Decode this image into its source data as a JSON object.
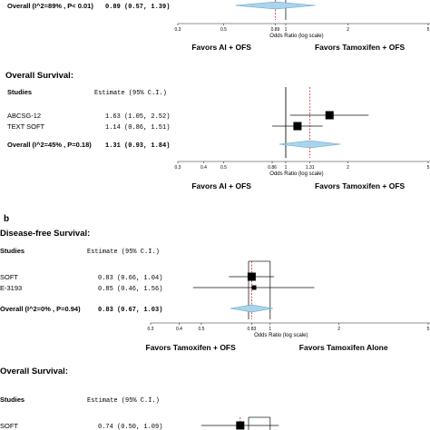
{
  "chart_data": [
    {
      "type": "forest",
      "panel": "",
      "section_title": "",
      "columns": {
        "studies": "",
        "estimate": ""
      },
      "rows": [],
      "overall": {
        "label": "Overall (I^2=89% , P< 0.01)",
        "text": "0.89 (0.57, 1.39)",
        "est": 0.89,
        "lo": 0.57,
        "hi": 1.39
      },
      "xlabel": "Odds Ratio (log scale)",
      "ticks": [
        "0.3",
        "0.5",
        "0.89",
        "1",
        "2",
        "5"
      ],
      "tick_values": [
        0.3,
        0.5,
        0.89,
        1,
        2,
        5
      ],
      "xlim": [
        0.3,
        5
      ],
      "refline": 0.89,
      "favor_left": "Favors AI + OFS",
      "favor_right": "Favors Tamoxifen + OFS"
    },
    {
      "type": "forest",
      "panel": "",
      "section_title": "Overall Survival:",
      "columns": {
        "studies": "Studies",
        "estimate": "Estimate (95% C.I.)"
      },
      "rows": [
        {
          "label": "ABCSG-12",
          "text": "1.63 (1.05, 2.52)",
          "est": 1.63,
          "lo": 1.05,
          "hi": 2.52
        },
        {
          "label": "TEXT SOFT",
          "text": "1.14 (0.86, 1.51)",
          "est": 1.14,
          "lo": 0.86,
          "hi": 1.51
        }
      ],
      "overall": {
        "label": "Overall (I^2=45% , P=0.18)",
        "text": "1.31 (0.93, 1.84)",
        "est": 1.31,
        "lo": 0.93,
        "hi": 1.84
      },
      "xlabel": "Odds Ratio (log scale)",
      "ticks": [
        "0.3",
        "0.4",
        "0.5",
        "0.86",
        "1",
        "1.31",
        "2",
        "5"
      ],
      "tick_values": [
        0.3,
        0.4,
        0.5,
        0.86,
        1,
        1.31,
        2,
        5
      ],
      "xlim": [
        0.3,
        5
      ],
      "refline": 1.31,
      "favor_left": "Favors AI + OFS",
      "favor_right": "Favors Tamoxifen + OFS"
    },
    {
      "type": "forest",
      "panel": "b",
      "section_title": "Disease-free Survival:",
      "columns": {
        "studies": "Studies",
        "estimate": "Estimate (95% C.I.)"
      },
      "rows": [
        {
          "label": "SOFT",
          "text": "0.83 (0.66, 1.04)",
          "est": 0.83,
          "lo": 0.66,
          "hi": 1.04
        },
        {
          "label": "E-3193",
          "text": "0.85 (0.46, 1.56)",
          "est": 0.85,
          "lo": 0.46,
          "hi": 1.56
        }
      ],
      "overall": {
        "label": "Overall (I^2=0% , P=0.94)",
        "text": "0.83 (0.67, 1.03)",
        "est": 0.83,
        "lo": 0.67,
        "hi": 1.03
      },
      "xlabel": "Odds Ratio (log scale)",
      "ticks": [
        "0.3",
        "0.4",
        "0.5",
        "0.83",
        "1",
        "2",
        "5"
      ],
      "tick_values": [
        0.3,
        0.4,
        0.5,
        0.83,
        1,
        2,
        5
      ],
      "xlim": [
        0.3,
        5
      ],
      "refline": 0.83,
      "favor_left": "Favors Tamoxifen + OFS",
      "favor_right": "Favors Tamoxifen Alone"
    },
    {
      "type": "forest",
      "panel": "",
      "section_title": "Overall Survival:",
      "columns": {
        "studies": "Studies",
        "estimate": "Estimate (95% C.I.)"
      },
      "rows": [
        {
          "label": "SOFT",
          "text": "0.74 (0.50, 1.09)",
          "est": 0.74,
          "lo": 0.5,
          "hi": 1.09
        }
      ],
      "xlim": [
        0.3,
        5
      ],
      "refline": 0.74
    }
  ]
}
